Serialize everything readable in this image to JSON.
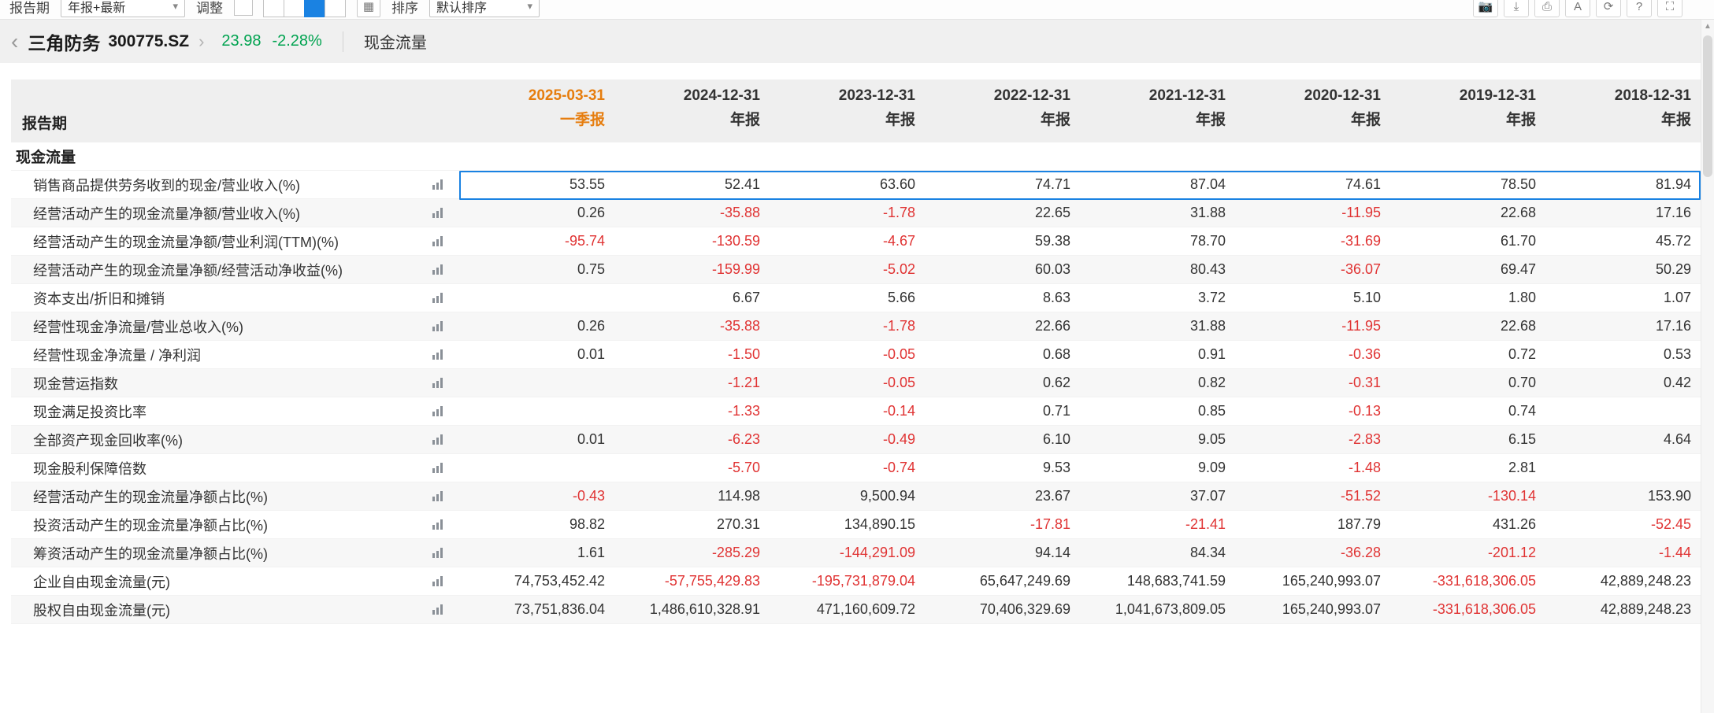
{
  "toolbar": {
    "period_label": "报告期",
    "period_value": "年报+最新",
    "adjust_label": "调整",
    "sort_label": "排序",
    "sort_value": "默认排序",
    "caret": "▾",
    "icons": [
      "camera-icon",
      "download-icon",
      "print-icon",
      "font-size-icon",
      "refresh-icon",
      "help-icon",
      "fullscreen-icon"
    ]
  },
  "breadcrumb": {
    "back": "‹",
    "stock_name": "三角防务",
    "stock_code": "300775.SZ",
    "chevron": "›",
    "price": "23.98",
    "change": "-2.28%",
    "tab": "现金流量"
  },
  "colors": {
    "current_period_orange": "#e67d0e",
    "negative_red": "#e03333",
    "price_green": "#00a350",
    "selection_blue": "#1a82e2"
  },
  "table": {
    "corner_label": "报告期",
    "section_label": "现金流量",
    "highlighted_row_index": 0,
    "columns": [
      {
        "date": "2025-03-31",
        "period": "一季报",
        "current": true
      },
      {
        "date": "2024-12-31",
        "period": "年报",
        "current": false
      },
      {
        "date": "2023-12-31",
        "period": "年报",
        "current": false
      },
      {
        "date": "2022-12-31",
        "period": "年报",
        "current": false
      },
      {
        "date": "2021-12-31",
        "period": "年报",
        "current": false
      },
      {
        "date": "2020-12-31",
        "period": "年报",
        "current": false
      },
      {
        "date": "2019-12-31",
        "period": "年报",
        "current": false
      },
      {
        "date": "2018-12-31",
        "period": "年报",
        "current": false
      }
    ],
    "rows": [
      {
        "label": "销售商品提供劳务收到的现金/营业收入(%)",
        "values": [
          "53.55",
          "52.41",
          "63.60",
          "74.71",
          "87.04",
          "74.61",
          "78.50",
          "81.94"
        ]
      },
      {
        "label": "经营活动产生的现金流量净额/营业收入(%)",
        "values": [
          "0.26",
          "-35.88",
          "-1.78",
          "22.65",
          "31.88",
          "-11.95",
          "22.68",
          "17.16"
        ]
      },
      {
        "label": "经营活动产生的现金流量净额/营业利润(TTM)(%)",
        "values": [
          "-95.74",
          "-130.59",
          "-4.67",
          "59.38",
          "78.70",
          "-31.69",
          "61.70",
          "45.72"
        ]
      },
      {
        "label": "经营活动产生的现金流量净额/经营活动净收益(%)",
        "values": [
          "0.75",
          "-159.99",
          "-5.02",
          "60.03",
          "80.43",
          "-36.07",
          "69.47",
          "50.29"
        ]
      },
      {
        "label": "资本支出/折旧和摊销",
        "values": [
          "",
          "6.67",
          "5.66",
          "8.63",
          "3.72",
          "5.10",
          "1.80",
          "1.07"
        ]
      },
      {
        "label": "经营性现金净流量/营业总收入(%)",
        "values": [
          "0.26",
          "-35.88",
          "-1.78",
          "22.66",
          "31.88",
          "-11.95",
          "22.68",
          "17.16"
        ]
      },
      {
        "label": "经营性现金净流量 / 净利润",
        "values": [
          "0.01",
          "-1.50",
          "-0.05",
          "0.68",
          "0.91",
          "-0.36",
          "0.72",
          "0.53"
        ]
      },
      {
        "label": "现金营运指数",
        "values": [
          "",
          "-1.21",
          "-0.05",
          "0.62",
          "0.82",
          "-0.31",
          "0.70",
          "0.42"
        ]
      },
      {
        "label": "现金满足投资比率",
        "values": [
          "",
          "-1.33",
          "-0.14",
          "0.71",
          "0.85",
          "-0.13",
          "0.74",
          ""
        ]
      },
      {
        "label": "全部资产现金回收率(%)",
        "values": [
          "0.01",
          "-6.23",
          "-0.49",
          "6.10",
          "9.05",
          "-2.83",
          "6.15",
          "4.64"
        ]
      },
      {
        "label": "现金股利保障倍数",
        "values": [
          "",
          "-5.70",
          "-0.74",
          "9.53",
          "9.09",
          "-1.48",
          "2.81",
          ""
        ]
      },
      {
        "label": "经营活动产生的现金流量净额占比(%)",
        "values": [
          "-0.43",
          "114.98",
          "9,500.94",
          "23.67",
          "37.07",
          "-51.52",
          "-130.14",
          "153.90"
        ]
      },
      {
        "label": "投资活动产生的现金流量净额占比(%)",
        "values": [
          "98.82",
          "270.31",
          "134,890.15",
          "-17.81",
          "-21.41",
          "187.79",
          "431.26",
          "-52.45"
        ]
      },
      {
        "label": "筹资活动产生的现金流量净额占比(%)",
        "values": [
          "1.61",
          "-285.29",
          "-144,291.09",
          "94.14",
          "84.34",
          "-36.28",
          "-201.12",
          "-1.44"
        ]
      },
      {
        "label": "企业自由现金流量(元)",
        "values": [
          "74,753,452.42",
          "-57,755,429.83",
          "-195,731,879.04",
          "65,647,249.69",
          "148,683,741.59",
          "165,240,993.07",
          "-331,618,306.05",
          "42,889,248.23"
        ]
      },
      {
        "label": "股权自由现金流量(元)",
        "values": [
          "73,751,836.04",
          "1,486,610,328.91",
          "471,160,609.72",
          "70,406,329.69",
          "1,041,673,809.05",
          "165,240,993.07",
          "-331,618,306.05",
          "42,889,248.23"
        ]
      }
    ]
  }
}
